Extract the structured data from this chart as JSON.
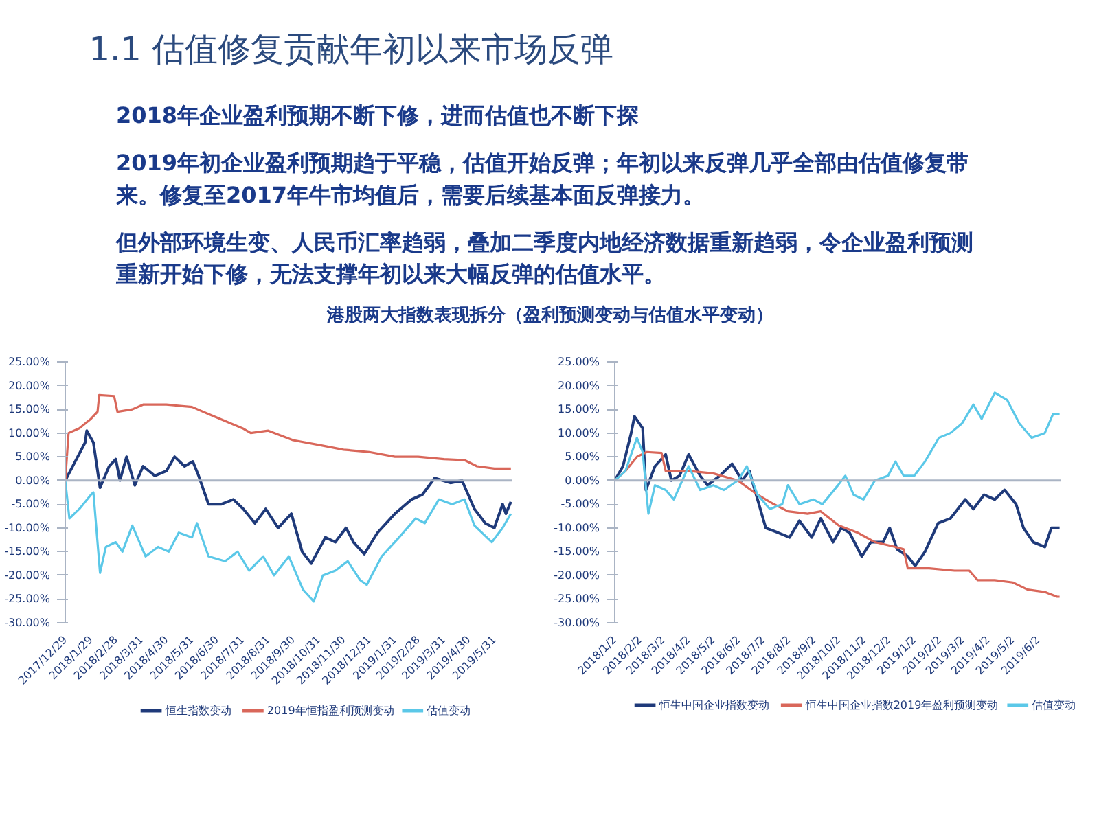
{
  "chart_data": [
    {
      "type": "other",
      "title": "1.1 估值修复贡献年初以来市场反弹",
      "subtitle": "港股两大指数表现拆分（盈利预测变动与估值水平变动）",
      "annotations": [
        "2018年企业盈利预期不断下修，进而估值也不断下探",
        "2019年初企业盈利预期趋于平稳，估值开始反弹；年初以来反弹几乎全部由估值修复带来。修复至2017年牛市均值后，需要后续基本面反弹接力。",
        "但外部环境生变、人民币汇率趋弱，叠加二季度内地经济数据重新趋弱，令企业盈利预测重新开始下修，无法支撑年初以来大幅反弹的估值水平。"
      ]
    },
    {
      "type": "line",
      "legend": "bottom",
      "xlim": [
        "2017-12-29",
        "2019-06-21"
      ],
      "ylim": [
        -30,
        25
      ],
      "xticks": [
        {
          "value": "2017-12-29",
          "label": "2017/12/29"
        },
        {
          "value": "2018-01-29",
          "label": "2018/1/29"
        },
        {
          "value": "2018-02-28",
          "label": "2018/2/28"
        },
        {
          "value": "2018-03-31",
          "label": "2018/3/31"
        },
        {
          "value": "2018-04-30",
          "label": "2018/4/30"
        },
        {
          "value": "2018-05-31",
          "label": "2018/5/31"
        },
        {
          "value": "2018-06-30",
          "label": "2018/6/30"
        },
        {
          "value": "2018-07-31",
          "label": "2018/7/31"
        },
        {
          "value": "2018-08-31",
          "label": "2018/8/31"
        },
        {
          "value": "2018-09-30",
          "label": "2018/9/30"
        },
        {
          "value": "2018-10-31",
          "label": "2018/10/31"
        },
        {
          "value": "2018-11-30",
          "label": "2018/11/30"
        },
        {
          "value": "2018-12-31",
          "label": "2018/12/31"
        },
        {
          "value": "2019-01-31",
          "label": "2019/1/31"
        },
        {
          "value": "2019-02-28",
          "label": "2019/2/28"
        },
        {
          "value": "2019-03-31",
          "label": "2019/3/31"
        },
        {
          "value": "2019-04-30",
          "label": "2019/4/30"
        },
        {
          "value": "2019-05-31",
          "label": "2019/5/31"
        }
      ],
      "yticks": [
        {
          "value": 25,
          "label": "25.00%"
        },
        {
          "value": 20,
          "label": "20.00%"
        },
        {
          "value": 15,
          "label": "15.00%"
        },
        {
          "value": 10,
          "label": "10.00%"
        },
        {
          "value": 5,
          "label": "5.00%"
        },
        {
          "value": 0,
          "label": "0.00%"
        },
        {
          "value": -5,
          "label": "-5.00%"
        },
        {
          "value": -10,
          "label": "-10.00%"
        },
        {
          "value": -15,
          "label": "-15.00%"
        },
        {
          "value": -20,
          "label": "-20.00%"
        },
        {
          "value": -25,
          "label": "-25.00%"
        },
        {
          "value": -30,
          "label": "-30.00%"
        }
      ],
      "series": [
        {
          "name": "恒生指数变动",
          "color": "#1f3a7a",
          "x": [
            "2017-12-29",
            "2018-01-10",
            "2018-01-22",
            "2018-01-24",
            "2018-02-01",
            "2018-02-09",
            "2018-02-20",
            "2018-02-28",
            "2018-03-05",
            "2018-03-13",
            "2018-03-23",
            "2018-04-02",
            "2018-04-16",
            "2018-04-30",
            "2018-05-10",
            "2018-05-22",
            "2018-06-01",
            "2018-06-08",
            "2018-06-20",
            "2018-07-05",
            "2018-07-20",
            "2018-08-01",
            "2018-08-15",
            "2018-08-28",
            "2018-09-12",
            "2018-09-28",
            "2018-10-11",
            "2018-10-22",
            "2018-11-08",
            "2018-11-20",
            "2018-12-03",
            "2018-12-12",
            "2018-12-25",
            "2019-01-10",
            "2019-01-31",
            "2019-02-20",
            "2019-03-05",
            "2019-03-20",
            "2019-04-08",
            "2019-04-22",
            "2019-05-07",
            "2019-05-20",
            "2019-05-31",
            "2019-06-10",
            "2019-06-14",
            "2019-06-20"
          ],
          "values": [
            0,
            4,
            8,
            10.5,
            8,
            -1.5,
            3,
            4.5,
            0,
            5,
            -1,
            3,
            1,
            2,
            5,
            3,
            4,
            1,
            -5,
            -5,
            -4,
            -6,
            -9,
            -6,
            -10,
            -7,
            -15,
            -17.5,
            -12,
            -13,
            -10,
            -13,
            -15.5,
            -11,
            -7,
            -4,
            -3,
            0.5,
            -0.5,
            0,
            -6,
            -9,
            -10,
            -5,
            -7,
            -4.5
          ]
        },
        {
          "name": "2019年恒指盈利预测变动",
          "color": "#d9675a",
          "x": [
            "2017-12-29",
            "2018-01-02",
            "2018-01-15",
            "2018-01-29",
            "2018-02-06",
            "2018-02-08",
            "2018-02-26",
            "2018-03-02",
            "2018-03-20",
            "2018-04-02",
            "2018-04-30",
            "2018-05-31",
            "2018-06-20",
            "2018-07-31",
            "2018-08-10",
            "2018-08-31",
            "2018-09-30",
            "2018-10-31",
            "2018-11-30",
            "2018-12-31",
            "2019-01-31",
            "2019-02-28",
            "2019-03-31",
            "2019-04-25",
            "2019-05-10",
            "2019-05-31",
            "2019-06-20"
          ],
          "values": [
            0,
            10,
            11,
            13,
            14.5,
            18,
            17.8,
            14.5,
            15,
            16,
            16,
            15.5,
            14,
            11,
            10,
            10.5,
            8.5,
            7.5,
            6.5,
            6,
            5,
            5,
            4.5,
            4.3,
            3,
            2.5,
            2.5
          ]
        },
        {
          "name": "估值变动",
          "color": "#5bc8e8",
          "x": [
            "2017-12-29",
            "2018-01-03",
            "2018-01-15",
            "2018-01-29",
            "2018-02-01",
            "2018-02-09",
            "2018-02-16",
            "2018-02-28",
            "2018-03-08",
            "2018-03-20",
            "2018-04-05",
            "2018-04-20",
            "2018-05-03",
            "2018-05-15",
            "2018-05-31",
            "2018-06-06",
            "2018-06-20",
            "2018-07-10",
            "2018-07-25",
            "2018-08-08",
            "2018-08-25",
            "2018-09-07",
            "2018-09-25",
            "2018-10-12",
            "2018-10-25",
            "2018-11-05",
            "2018-11-20",
            "2018-12-05",
            "2018-12-20",
            "2018-12-28",
            "2019-01-15",
            "2019-02-05",
            "2019-02-25",
            "2019-03-08",
            "2019-03-25",
            "2019-04-10",
            "2019-04-25",
            "2019-05-07",
            "2019-05-28",
            "2019-06-10",
            "2019-06-20"
          ],
          "values": [
            0,
            -8,
            -6,
            -3,
            -2.5,
            -19.5,
            -14,
            -13,
            -15,
            -9.5,
            -16,
            -14,
            -15,
            -11,
            -12,
            -9,
            -16,
            -17,
            -15,
            -19,
            -16,
            -20,
            -16,
            -23,
            -25.5,
            -20,
            -19,
            -17,
            -21,
            -22,
            -16,
            -12,
            -8,
            -9,
            -4,
            -5,
            -4,
            -9.5,
            -13,
            -10,
            -7
          ]
        }
      ]
    },
    {
      "type": "line",
      "legend": "bottom",
      "xlim": [
        "2018-01-02",
        "2019-06-30"
      ],
      "ylim": [
        -30,
        25
      ],
      "xticks": [
        {
          "value": "2018-01-02",
          "label": "2018/1/2"
        },
        {
          "value": "2018-02-02",
          "label": "2018/2/2"
        },
        {
          "value": "2018-03-02",
          "label": "2018/3/2"
        },
        {
          "value": "2018-04-02",
          "label": "2018/4/2"
        },
        {
          "value": "2018-05-02",
          "label": "2018/5/2"
        },
        {
          "value": "2018-06-02",
          "label": "2018/6/2"
        },
        {
          "value": "2018-07-02",
          "label": "2018/7/2"
        },
        {
          "value": "2018-08-02",
          "label": "2018/8/2"
        },
        {
          "value": "2018-09-02",
          "label": "2018/9/2"
        },
        {
          "value": "2018-10-02",
          "label": "2018/10/2"
        },
        {
          "value": "2018-11-02",
          "label": "2018/11/2"
        },
        {
          "value": "2018-12-02",
          "label": "2018/12/2"
        },
        {
          "value": "2019-01-02",
          "label": "2019/1/2"
        },
        {
          "value": "2019-02-02",
          "label": "2019/2/2"
        },
        {
          "value": "2019-03-02",
          "label": "2019/3/2"
        },
        {
          "value": "2019-04-02",
          "label": "2019/4/2"
        },
        {
          "value": "2019-05-02",
          "label": "2019/5/2"
        },
        {
          "value": "2019-06-02",
          "label": "2019/6/2"
        }
      ],
      "yticks": [
        {
          "value": 25,
          "label": "25.00%"
        },
        {
          "value": 20,
          "label": "20.00%"
        },
        {
          "value": 15,
          "label": "15.00%"
        },
        {
          "value": 10,
          "label": "10.00%"
        },
        {
          "value": 5,
          "label": "5.00%"
        },
        {
          "value": 0,
          "label": "0.00%"
        },
        {
          "value": -5,
          "label": "-5.00%"
        },
        {
          "value": -10,
          "label": "-10.00%"
        },
        {
          "value": -15,
          "label": "-15.00%"
        },
        {
          "value": -20,
          "label": "-20.00%"
        },
        {
          "value": -25,
          "label": "-25.00%"
        },
        {
          "value": -30,
          "label": "-30.00%"
        }
      ],
      "series": [
        {
          "name": "恒生中国企业指数变动",
          "color": "#1f3a7a",
          "x": [
            "2018-01-02",
            "2018-01-12",
            "2018-01-22",
            "2018-01-26",
            "2018-02-05",
            "2018-02-09",
            "2018-02-20",
            "2018-03-05",
            "2018-03-12",
            "2018-03-22",
            "2018-04-02",
            "2018-04-16",
            "2018-04-25",
            "2018-05-10",
            "2018-05-25",
            "2018-06-06",
            "2018-06-15",
            "2018-06-25",
            "2018-07-05",
            "2018-07-20",
            "2018-08-03",
            "2018-08-15",
            "2018-08-30",
            "2018-09-10",
            "2018-09-25",
            "2018-10-05",
            "2018-10-15",
            "2018-10-30",
            "2018-11-10",
            "2018-11-25",
            "2018-12-03",
            "2018-12-12",
            "2018-12-25",
            "2019-01-03",
            "2019-01-15",
            "2019-01-31",
            "2019-02-15",
            "2019-03-05",
            "2019-03-15",
            "2019-03-28",
            "2019-04-10",
            "2019-04-22",
            "2019-05-06",
            "2019-05-15",
            "2019-05-27",
            "2019-06-10",
            "2019-06-18",
            "2019-06-28"
          ],
          "values": [
            0,
            3,
            10,
            13.5,
            11,
            -2,
            3,
            5.5,
            0,
            1,
            5.5,
            1,
            -1,
            1,
            3.5,
            0,
            2,
            -4,
            -10,
            -11,
            -12,
            -8.5,
            -12,
            -8,
            -13,
            -10,
            -11,
            -16,
            -13,
            -13,
            -10,
            -14.5,
            -16,
            -18,
            -15,
            -9,
            -8,
            -4,
            -6,
            -3,
            -4,
            -2,
            -5,
            -10,
            -13,
            -14,
            -10,
            -10
          ]
        },
        {
          "name": "恒生中国企业指数2019年盈利预测变动",
          "color": "#d9675a",
          "x": [
            "2018-01-02",
            "2018-01-15",
            "2018-01-29",
            "2018-02-10",
            "2018-02-28",
            "2018-03-05",
            "2018-04-02",
            "2018-05-02",
            "2018-06-01",
            "2018-06-25",
            "2018-07-15",
            "2018-08-01",
            "2018-08-25",
            "2018-09-10",
            "2018-10-02",
            "2018-10-25",
            "2018-11-15",
            "2018-12-10",
            "2018-12-20",
            "2018-12-25",
            "2019-01-20",
            "2019-02-20",
            "2019-03-10",
            "2019-03-20",
            "2019-04-10",
            "2019-05-02",
            "2019-05-20",
            "2019-06-10",
            "2019-06-25",
            "2019-06-28"
          ],
          "values": [
            0,
            2,
            5,
            6,
            5.8,
            2,
            2,
            1.5,
            0,
            -3,
            -5,
            -6.5,
            -7,
            -6.5,
            -9.5,
            -11,
            -13,
            -14,
            -14.5,
            -18.5,
            -18.5,
            -19,
            -19,
            -21,
            -21,
            -21.5,
            -23,
            -23.5,
            -24.5,
            -24.5
          ]
        },
        {
          "name": "估值变动",
          "color": "#5bc8e8",
          "x": [
            "2018-01-02",
            "2018-01-15",
            "2018-01-29",
            "2018-02-05",
            "2018-02-12",
            "2018-02-20",
            "2018-03-05",
            "2018-03-15",
            "2018-04-02",
            "2018-04-16",
            "2018-05-02",
            "2018-05-15",
            "2018-06-01",
            "2018-06-12",
            "2018-06-25",
            "2018-07-10",
            "2018-07-25",
            "2018-08-01",
            "2018-08-15",
            "2018-09-01",
            "2018-09-12",
            "2018-10-01",
            "2018-10-10",
            "2018-10-20",
            "2018-11-01",
            "2018-11-15",
            "2018-12-01",
            "2018-12-10",
            "2018-12-20",
            "2019-01-02",
            "2019-01-15",
            "2019-02-01",
            "2019-02-15",
            "2019-03-01",
            "2019-03-15",
            "2019-03-25",
            "2019-04-10",
            "2019-04-25",
            "2019-05-10",
            "2019-05-25",
            "2019-06-10",
            "2019-06-20",
            "2019-06-28"
          ],
          "values": [
            0,
            2,
            9,
            6,
            -7,
            -1,
            -2,
            -4,
            3,
            -2,
            -1,
            -2,
            0,
            3,
            -3,
            -6,
            -5,
            -1,
            -5,
            -4,
            -5,
            -1,
            1,
            -3,
            -4,
            0,
            1,
            4,
            1,
            1,
            4,
            9,
            10,
            12,
            16,
            13,
            18.5,
            17,
            12,
            9,
            10,
            14,
            14
          ]
        }
      ]
    }
  ]
}
